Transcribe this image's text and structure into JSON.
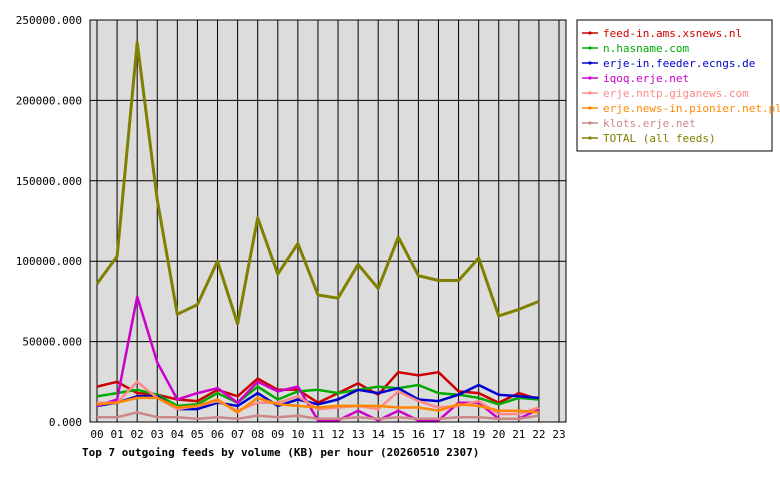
{
  "chart_data": {
    "type": "line",
    "title": "Top 7 outgoing feeds by volume (KB) per hour (20260510 2307)",
    "categories": [
      "00",
      "01",
      "02",
      "03",
      "04",
      "05",
      "06",
      "07",
      "08",
      "09",
      "10",
      "11",
      "12",
      "13",
      "14",
      "15",
      "16",
      "17",
      "18",
      "19",
      "20",
      "21",
      "22",
      "23"
    ],
    "y_ticks": [
      "0.000",
      "50000.000",
      "100000.000",
      "150000.000",
      "200000.000",
      "250000.000"
    ],
    "ylim": [
      0,
      250000
    ],
    "grid": true,
    "legend_position": "right",
    "series": [
      {
        "name": "feed-in.ams.xsnews.nl",
        "color": "#cc0000",
        "values": [
          22000,
          25000,
          18000,
          17000,
          14000,
          13000,
          20000,
          16000,
          27000,
          20000,
          20000,
          12000,
          18000,
          24000,
          17000,
          31000,
          29000,
          31000,
          19000,
          18000,
          12000,
          18000,
          14000,
          null
        ]
      },
      {
        "name": "n.hasname.com",
        "color": "#00aa00",
        "values": [
          16000,
          18000,
          20000,
          17000,
          10000,
          11000,
          18000,
          12000,
          22000,
          14000,
          19000,
          20000,
          18000,
          20000,
          22000,
          21000,
          23000,
          18000,
          17000,
          15000,
          11000,
          15000,
          14000,
          null
        ]
      },
      {
        "name": "erje-in.feeder.ecngs.de",
        "color": "#0000cc",
        "values": [
          10000,
          12000,
          16000,
          16000,
          8000,
          8000,
          12000,
          10000,
          18000,
          10000,
          14000,
          11000,
          14000,
          20000,
          18000,
          21000,
          14000,
          13000,
          17000,
          23000,
          17000,
          16000,
          15000,
          null
        ]
      },
      {
        "name": "iqoq.erje.net",
        "color": "#cc00cc",
        "values": [
          10000,
          14000,
          78000,
          37000,
          14000,
          18000,
          21000,
          12000,
          25000,
          19000,
          22000,
          1000,
          1000,
          7000,
          1000,
          7000,
          1000,
          1000,
          12000,
          12000,
          2000,
          2000,
          8000,
          null
        ]
      },
      {
        "name": "erje.nntp.giganews.com",
        "color": "#ff8888",
        "values": [
          12000,
          12000,
          25000,
          15000,
          8000,
          10000,
          13000,
          7000,
          12000,
          12000,
          16000,
          8000,
          9000,
          10000,
          8000,
          19000,
          13000,
          9000,
          10000,
          13000,
          5000,
          5000,
          9000,
          null
        ]
      },
      {
        "name": "erje.news-in.pionier.net.pl",
        "color": "#ff8800",
        "values": [
          11000,
          12000,
          15000,
          15000,
          9000,
          10000,
          14000,
          6000,
          15000,
          11000,
          10000,
          9000,
          10000,
          10000,
          10000,
          9000,
          9000,
          7000,
          11000,
          10000,
          7000,
          7000,
          6000,
          null
        ]
      },
      {
        "name": "klots.erje.net",
        "color": "#cc8888",
        "values": [
          3000,
          3000,
          6000,
          3000,
          3000,
          2000,
          3000,
          2000,
          4000,
          3000,
          4000,
          2000,
          2000,
          3000,
          2000,
          3000,
          2000,
          2000,
          3000,
          3000,
          2000,
          2000,
          4000,
          null
        ]
      },
      {
        "name": "TOTAL (all feeds)",
        "color": "#808000",
        "bold": true,
        "values": [
          86000,
          103000,
          236000,
          138000,
          67000,
          73000,
          100000,
          61000,
          127000,
          92000,
          111000,
          79000,
          77000,
          98000,
          83000,
          115000,
          91000,
          88000,
          88000,
          102000,
          66000,
          70000,
          75000,
          null
        ]
      }
    ]
  }
}
